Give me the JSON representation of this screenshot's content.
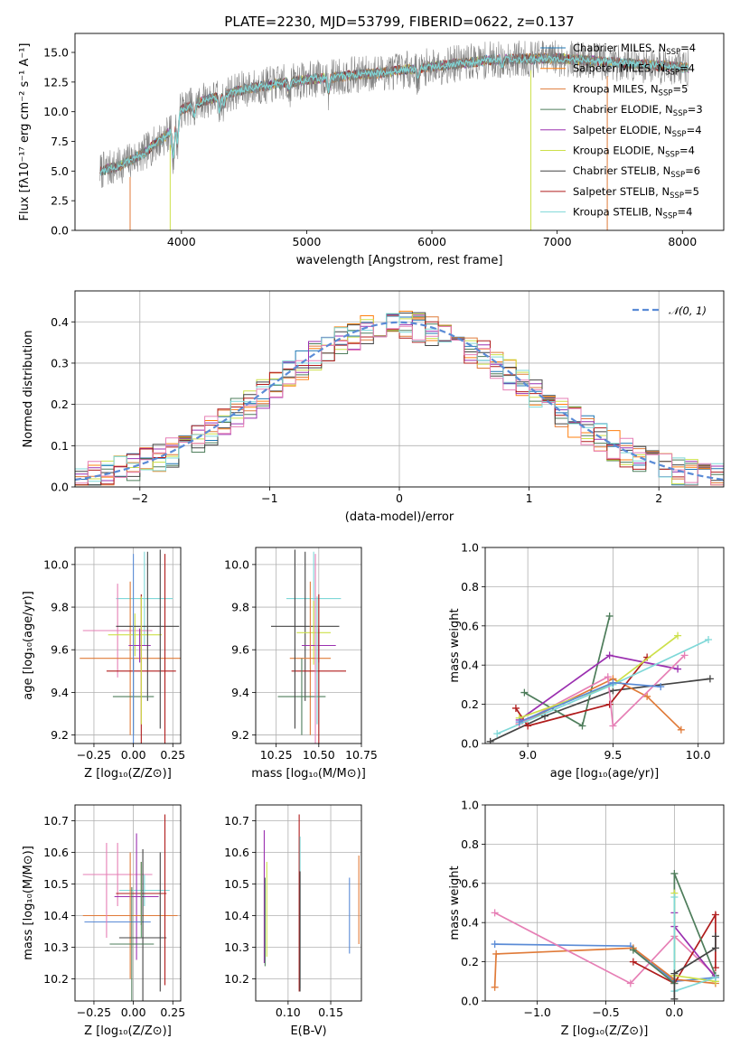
{
  "colors": {
    "Chabrier MILES": "#1f77b4",
    "Salpeter MILES": "#ff7f0e",
    "Kroupa MILES": "#e07b39",
    "Chabrier ELODIE": "#4e7d5b",
    "Salpeter ELODIE": "#9b30b0",
    "Kroupa ELODIE": "#cde04a",
    "Chabrier STELIB": "#444444",
    "Salpeter STELIB": "#b01c1c",
    "Kroupa STELIB": "#7fd8d8",
    "extra_pink": "#e67fb5",
    "extra_blue": "#5a8bd6",
    "extra_green": "#5ca06b",
    "spectrum_gray": "#7f7f7f",
    "normal_curve": "#5a8bd6",
    "grid": "#b0b0b0"
  },
  "chart_data": [
    {
      "id": "spectrum",
      "type": "line",
      "title": "PLATE=2230, MJD=53799, FIBERID=0622, z=0.137",
      "xlabel": "wavelength [Angstrom, rest frame]",
      "ylabel": "Flux [fλ10⁻¹⁷ erg cm⁻² s⁻¹ A⁻¹]",
      "xlim": [
        3150,
        8330
      ],
      "ylim": [
        0,
        16.6
      ],
      "grid": false,
      "xticks": [
        4000,
        5000,
        6000,
        7000,
        8000
      ],
      "xtick_labels": [
        "4000",
        "5000",
        "6000",
        "7000",
        "8000"
      ],
      "yticks": [
        0.0,
        2.5,
        5.0,
        7.5,
        10.0,
        12.5,
        15.0
      ],
      "ytick_labels": [
        "0.0",
        "2.5",
        "5.0",
        "7.5",
        "10.0",
        "12.5",
        "15.0"
      ],
      "legend_position": "right",
      "legend": [
        {
          "label": "Chabrier MILES, N",
          "sub": "SSP",
          "suffix": "=4",
          "key": "Chabrier MILES"
        },
        {
          "label": "Salpeter MILES, N",
          "sub": "SSP",
          "suffix": "=4",
          "key": "Salpeter MILES"
        },
        {
          "label": "Kroupa MILES, N",
          "sub": "SSP",
          "suffix": "=5",
          "key": "Kroupa MILES"
        },
        {
          "label": "Chabrier ELODIE, N",
          "sub": "SSP",
          "suffix": "=3",
          "key": "Chabrier ELODIE"
        },
        {
          "label": "Salpeter ELODIE, N",
          "sub": "SSP",
          "suffix": "=4",
          "key": "Salpeter ELODIE"
        },
        {
          "label": "Kroupa ELODIE, N",
          "sub": "SSP",
          "suffix": "=4",
          "key": "Kroupa ELODIE"
        },
        {
          "label": "Chabrier STELIB, N",
          "sub": "SSP",
          "suffix": "=6",
          "key": "Chabrier STELIB"
        },
        {
          "label": "Salpeter STELIB, N",
          "sub": "SSP",
          "suffix": "=5",
          "key": "Salpeter STELIB"
        },
        {
          "label": "Kroupa STELIB, N",
          "sub": "SSP",
          "suffix": "=4",
          "key": "Kroupa STELIB"
        }
      ],
      "continuum": {
        "x": [
          3350,
          3500,
          3700,
          3900,
          4000,
          4200,
          4500,
          4800,
          5000,
          5300,
          5600,
          6000,
          6500,
          7000,
          7400,
          7800,
          8050
        ],
        "y": [
          5.0,
          5.4,
          6.5,
          8.2,
          10.2,
          11.0,
          11.9,
          12.4,
          12.7,
          13.0,
          13.3,
          13.8,
          14.4,
          14.5,
          14.2,
          13.9,
          13.7
        ]
      },
      "absorption_features": [
        {
          "x": 3934,
          "depth": 3.0
        },
        {
          "x": 3968,
          "depth": 2.2
        },
        {
          "x": 4102,
          "depth": 1.0
        },
        {
          "x": 4304,
          "depth": 1.3
        },
        {
          "x": 4340,
          "depth": 0.9
        },
        {
          "x": 4861,
          "depth": 0.8
        },
        {
          "x": 5175,
          "depth": 1.2
        },
        {
          "x": 5890,
          "depth": 1.0
        },
        {
          "x": 6563,
          "depth": 0.6
        }
      ],
      "drop_lines": [
        {
          "x": 3590,
          "top": 4.5,
          "color": "#e07b39"
        },
        {
          "x": 3910,
          "top": 7.2,
          "color": "#cde04a"
        },
        {
          "x": 6790,
          "top": 13.5,
          "color": "#cde04a"
        },
        {
          "x": 7400,
          "top": 13.0,
          "color": "#e07b39"
        }
      ]
    },
    {
      "id": "residuals",
      "type": "step",
      "xlabel": "(data-model)/error",
      "ylabel": "Normed distribution",
      "xlim": [
        -2.5,
        2.5
      ],
      "ylim": [
        0,
        0.475
      ],
      "grid": true,
      "xticks": [
        -2,
        -1,
        0,
        1,
        2
      ],
      "xtick_labels": [
        "−2",
        "−1",
        "0",
        "1",
        "2"
      ],
      "yticks": [
        0.0,
        0.1,
        0.2,
        0.3,
        0.4
      ],
      "ytick_labels": [
        "0.0",
        "0.1",
        "0.2",
        "0.3",
        "0.4"
      ],
      "bin_width": 0.1,
      "normal_label": "𝒩(0, 1)",
      "normal_mean": 0,
      "normal_sigma": 1,
      "series_keys": [
        "Chabrier MILES",
        "Salpeter MILES",
        "Kroupa MILES",
        "Chabrier ELODIE",
        "Salpeter ELODIE",
        "Kroupa ELODIE",
        "Chabrier STELIB",
        "Salpeter STELIB",
        "Kroupa STELIB",
        "extra_pink"
      ]
    },
    {
      "id": "age_vs_Z",
      "type": "errorbar",
      "xlabel": "Z [log₁₀(Z/Z⊙)]",
      "ylabel": "age  [log₁₀(age/yr)]",
      "xlim": [
        -0.37,
        0.3
      ],
      "ylim": [
        9.16,
        10.08
      ],
      "grid": true,
      "xticks": [
        -0.25,
        0.0,
        0.25
      ],
      "xtick_labels": [
        "−0.25",
        "0.00",
        "0.25"
      ],
      "yticks": [
        9.2,
        9.4,
        9.6,
        9.8,
        10.0
      ],
      "ytick_labels": [
        "9.2",
        "9.4",
        "9.6",
        "9.8",
        "10.0"
      ],
      "points": [
        {
          "x": 0.07,
          "xerr": 0.18,
          "y": 9.84,
          "yerr": 0.22,
          "color": "#7fd8d8"
        },
        {
          "x": -0.1,
          "xerr": 0.22,
          "y": 9.69,
          "yerr": 0.22,
          "color": "#e67fb5"
        },
        {
          "x": -0.02,
          "xerr": 0.32,
          "y": 9.56,
          "yerr": 0.36,
          "color": "#e07b39"
        },
        {
          "x": 0.01,
          "xerr": 0.17,
          "y": 9.67,
          "yerr": 0.1,
          "color": "#cde04a"
        },
        {
          "x": 0.04,
          "xerr": 0.07,
          "y": 9.62,
          "yerr": 0.08,
          "color": "#9b30b0"
        },
        {
          "x": 0.09,
          "xerr": 0.2,
          "y": 9.71,
          "yerr": 0.35,
          "color": "#444444"
        },
        {
          "x": 0.05,
          "xerr": 0.22,
          "y": 9.5,
          "yerr": 0.36,
          "color": "#b01c1c"
        },
        {
          "x": 0.0,
          "xerr": 0.13,
          "y": 9.38,
          "yerr": 0.18,
          "color": "#4e7d5b"
        },
        {
          "x": 0.0,
          "xerr": 0.0,
          "y": 9.6,
          "yerr": 0.45,
          "color": "#5a8bd6"
        },
        {
          "x": 0.2,
          "xerr": 0.0,
          "y": 9.6,
          "yerr": 0.45,
          "color": "#b01c1c"
        },
        {
          "x": 0.17,
          "xerr": 0.0,
          "y": 9.65,
          "yerr": 0.42,
          "color": "#444444"
        },
        {
          "x": 0.05,
          "xerr": 0.0,
          "y": 9.55,
          "yerr": 0.3,
          "color": "#cde04a"
        }
      ]
    },
    {
      "id": "age_vs_mass",
      "type": "errorbar",
      "xlabel": "mass [log₁₀(M/M⊙)]",
      "ylabel": "",
      "xlim": [
        10.13,
        10.75
      ],
      "ylim": [
        9.16,
        10.08
      ],
      "grid": true,
      "xticks": [
        10.25,
        10.5,
        10.75
      ],
      "xtick_labels": [
        "10.25",
        "10.50",
        "10.75"
      ],
      "yticks": [
        9.2,
        9.4,
        9.6,
        9.8,
        10.0
      ],
      "ytick_labels": [
        "9.2",
        "9.4",
        "9.6",
        "9.8",
        "10.0"
      ],
      "points": [
        {
          "x": 10.47,
          "xerr": 0.16,
          "y": 9.84,
          "yerr": 0.22,
          "color": "#7fd8d8"
        },
        {
          "x": 10.42,
          "xerr": 0.2,
          "y": 9.71,
          "yerr": 0.35,
          "color": "#444444"
        },
        {
          "x": 10.47,
          "xerr": 0.1,
          "y": 9.68,
          "yerr": 0.15,
          "color": "#cde04a"
        },
        {
          "x": 10.5,
          "xerr": 0.1,
          "y": 9.62,
          "yerr": 0.08,
          "color": "#9b30b0"
        },
        {
          "x": 10.45,
          "xerr": 0.12,
          "y": 9.56,
          "yerr": 0.36,
          "color": "#e07b39"
        },
        {
          "x": 10.5,
          "xerr": 0.16,
          "y": 9.5,
          "yerr": 0.36,
          "color": "#b01c1c"
        },
        {
          "x": 10.4,
          "xerr": 0.14,
          "y": 9.38,
          "yerr": 0.18,
          "color": "#4e7d5b"
        },
        {
          "x": 10.48,
          "xerr": 0.0,
          "y": 9.6,
          "yerr": 0.45,
          "color": "#e67fb5"
        },
        {
          "x": 10.36,
          "xerr": 0.0,
          "y": 9.65,
          "yerr": 0.42,
          "color": "#444444"
        },
        {
          "x": 10.49,
          "xerr": 0.0,
          "y": 9.55,
          "yerr": 0.3,
          "color": "#7fd8d8"
        }
      ]
    },
    {
      "id": "weight_vs_age",
      "type": "line",
      "xlabel": "age  [log₁₀(age/yr)]",
      "ylabel": "mass weight",
      "xlim": [
        8.75,
        10.15
      ],
      "ylim": [
        0,
        1.0
      ],
      "grid": true,
      "xticks": [
        9.0,
        9.5,
        10.0
      ],
      "xtick_labels": [
        "9.0",
        "9.5",
        "10.0"
      ],
      "yticks": [
        0.0,
        0.2,
        0.4,
        0.6,
        0.8,
        1.0
      ],
      "ytick_labels": [
        "0.0",
        "0.2",
        "0.4",
        "0.6",
        "0.8",
        "1.0"
      ],
      "series": [
        {
          "color": "#444444",
          "x": [
            8.78,
            9.1,
            9.5,
            10.07
          ],
          "y": [
            0.01,
            0.14,
            0.27,
            0.33
          ]
        },
        {
          "color": "#4e7d5b",
          "x": [
            8.98,
            9.32,
            9.48
          ],
          "y": [
            0.26,
            0.09,
            0.65
          ]
        },
        {
          "color": "#e07b39",
          "x": [
            8.95,
            9.5,
            9.7,
            9.9
          ],
          "y": [
            0.1,
            0.33,
            0.24,
            0.07
          ]
        },
        {
          "color": "#9b30b0",
          "x": [
            8.95,
            9.48,
            9.88
          ],
          "y": [
            0.12,
            0.45,
            0.38
          ]
        },
        {
          "color": "#b01c1c",
          "x": [
            8.93,
            9.0,
            9.48,
            9.7
          ],
          "y": [
            0.18,
            0.09,
            0.2,
            0.44
          ]
        },
        {
          "color": "#e67fb5",
          "x": [
            8.95,
            9.47,
            9.5,
            9.92
          ],
          "y": [
            0.1,
            0.34,
            0.09,
            0.45
          ]
        },
        {
          "color": "#cde04a",
          "x": [
            8.95,
            9.5,
            9.88
          ],
          "y": [
            0.13,
            0.3,
            0.55
          ]
        },
        {
          "color": "#7fd8d8",
          "x": [
            8.82,
            9.5,
            10.06
          ],
          "y": [
            0.05,
            0.3,
            0.53
          ]
        },
        {
          "color": "#5a8bd6",
          "x": [
            8.95,
            9.5,
            9.78
          ],
          "y": [
            0.11,
            0.31,
            0.29
          ]
        }
      ]
    },
    {
      "id": "mass_vs_Z",
      "type": "errorbar",
      "xlabel": "Z [log₁₀(Z/Z⊙)]",
      "ylabel": "mass [log₁₀(M/M⊙)]",
      "xlim": [
        -0.37,
        0.3
      ],
      "ylim": [
        10.13,
        10.75
      ],
      "grid": true,
      "xticks": [
        -0.25,
        0.0,
        0.25
      ],
      "xtick_labels": [
        "−0.25",
        "0.00",
        "0.25"
      ],
      "yticks": [
        10.2,
        10.3,
        10.4,
        10.5,
        10.6,
        10.7
      ],
      "ytick_labels": [
        "10.2",
        "10.3",
        "10.4",
        "10.5",
        "10.6",
        "10.7"
      ],
      "points": [
        {
          "x": -0.1,
          "xerr": 0.22,
          "y": 10.53,
          "yerr": 0.1,
          "color": "#e67fb5"
        },
        {
          "x": 0.07,
          "xerr": 0.16,
          "y": 10.48,
          "yerr": 0.05,
          "color": "#7fd8d8"
        },
        {
          "x": 0.05,
          "xerr": 0.16,
          "y": 10.47,
          "yerr": 0.1,
          "color": "#b01c1c"
        },
        {
          "x": 0.02,
          "xerr": 0.14,
          "y": 10.46,
          "yerr": 0.2,
          "color": "#9b30b0"
        },
        {
          "x": -0.02,
          "xerr": 0.3,
          "y": 10.4,
          "yerr": 0.2,
          "color": "#e07b39"
        },
        {
          "x": -0.1,
          "xerr": 0.21,
          "y": 10.38,
          "yerr": 0.0,
          "color": "#5a8bd6"
        },
        {
          "x": 0.06,
          "xerr": 0.15,
          "y": 10.33,
          "yerr": 0.28,
          "color": "#444444"
        },
        {
          "x": -0.01,
          "xerr": 0.14,
          "y": 10.31,
          "yerr": 0.18,
          "color": "#4e7d5b"
        },
        {
          "x": 0.2,
          "xerr": 0.0,
          "y": 10.45,
          "yerr": 0.27,
          "color": "#b01c1c"
        },
        {
          "x": 0.17,
          "xerr": 0.0,
          "y": 10.38,
          "yerr": 0.22,
          "color": "#444444"
        },
        {
          "x": 0.05,
          "xerr": 0.0,
          "y": 10.45,
          "yerr": 0.12,
          "color": "#5ca06b"
        },
        {
          "x": -0.17,
          "xerr": 0.0,
          "y": 10.48,
          "yerr": 0.15,
          "color": "#e67fb5"
        }
      ]
    },
    {
      "id": "mass_vs_ebv",
      "type": "errorbar",
      "xlabel": "E(B-V)",
      "ylabel": "",
      "xlim": [
        0.062,
        0.186
      ],
      "ylim": [
        10.13,
        10.75
      ],
      "grid": true,
      "xticks": [
        0.1,
        0.15
      ],
      "xtick_labels": [
        "0.10",
        "0.15"
      ],
      "yticks": [
        10.2,
        10.3,
        10.4,
        10.5,
        10.6,
        10.7
      ],
      "ytick_labels": [
        "10.2",
        "10.3",
        "10.4",
        "10.5",
        "10.6",
        "10.7"
      ],
      "points": [
        {
          "x": 0.072,
          "xerr": 0.0,
          "y": 10.46,
          "yerr": 0.21,
          "color": "#9b30b0"
        },
        {
          "x": 0.073,
          "xerr": 0.0,
          "y": 10.38,
          "yerr": 0.14,
          "color": "#4e7d5b"
        },
        {
          "x": 0.075,
          "xerr": 0.0,
          "y": 10.42,
          "yerr": 0.15,
          "color": "#cde04a"
        },
        {
          "x": 0.113,
          "xerr": 0.0,
          "y": 10.44,
          "yerr": 0.28,
          "color": "#b01c1c"
        },
        {
          "x": 0.114,
          "xerr": 0.0,
          "y": 10.41,
          "yerr": 0.24,
          "color": "#7fd8d8"
        },
        {
          "x": 0.114,
          "xerr": 0.0,
          "y": 10.35,
          "yerr": 0.19,
          "color": "#444444"
        },
        {
          "x": 0.172,
          "xerr": 0.0,
          "y": 10.4,
          "yerr": 0.12,
          "color": "#5a8bd6"
        },
        {
          "x": 0.183,
          "xerr": 0.0,
          "y": 10.45,
          "yerr": 0.14,
          "color": "#e07b39"
        }
      ]
    },
    {
      "id": "weight_vs_Z",
      "type": "line",
      "xlabel": "Z [log₁₀(Z/Z⊙)]",
      "ylabel": "mass weight",
      "xlim": [
        -1.38,
        0.36
      ],
      "ylim": [
        0,
        1.0
      ],
      "grid": true,
      "xticks": [
        -1.0,
        -0.5,
        0.0
      ],
      "xtick_labels": [
        "−1.0",
        "−0.5",
        "0.0"
      ],
      "yticks": [
        0.0,
        0.2,
        0.4,
        0.6,
        0.8,
        1.0
      ],
      "ytick_labels": [
        "0.0",
        "0.2",
        "0.4",
        "0.6",
        "0.8",
        "1.0"
      ],
      "series": [
        {
          "color": "#5a8bd6",
          "x": [
            -1.31,
            -0.32,
            0.0,
            0.3
          ],
          "y": [
            0.29,
            0.28,
            0.1,
            0.12
          ]
        },
        {
          "color": "#e07b39",
          "x": [
            -1.31,
            -1.3,
            -0.3,
            0.0,
            0.3
          ],
          "y": [
            0.07,
            0.24,
            0.27,
            0.11,
            0.09
          ]
        },
        {
          "color": "#e67fb5",
          "x": [
            -1.31,
            -0.32,
            0.0,
            0.3
          ],
          "y": [
            0.45,
            0.09,
            0.33,
            0.13
          ]
        },
        {
          "color": "#b01c1c",
          "x": [
            -0.3,
            0.0,
            0.3,
            0.3
          ],
          "y": [
            0.2,
            0.09,
            0.44,
            0.17
          ]
        },
        {
          "color": "#4e7d5b",
          "x": [
            -0.3,
            0.0,
            0.0,
            0.3
          ],
          "y": [
            0.26,
            0.09,
            0.65,
            0.13
          ]
        },
        {
          "color": "#9b30b0",
          "x": [
            0.0,
            0.0,
            0.3
          ],
          "y": [
            0.45,
            0.38,
            0.12
          ]
        },
        {
          "color": "#cde04a",
          "x": [
            0.0,
            0.0,
            0.3
          ],
          "y": [
            0.55,
            0.13,
            0.1
          ]
        },
        {
          "color": "#7fd8d8",
          "x": [
            0.0,
            0.0,
            0.3
          ],
          "y": [
            0.53,
            0.05,
            0.12
          ]
        },
        {
          "color": "#444444",
          "x": [
            0.0,
            0.0,
            0.3,
            0.3
          ],
          "y": [
            0.01,
            0.14,
            0.27,
            0.33
          ]
        }
      ]
    }
  ]
}
